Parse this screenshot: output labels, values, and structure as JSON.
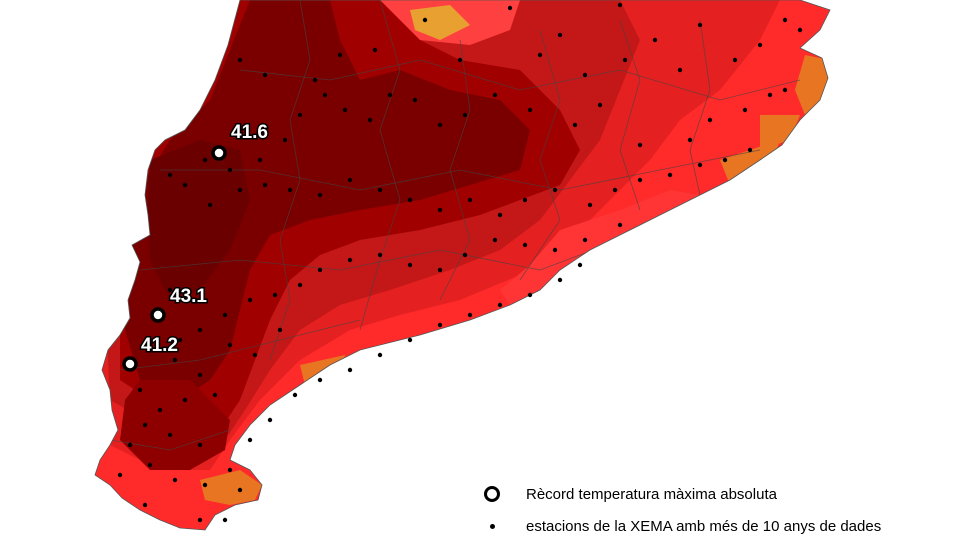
{
  "map": {
    "colors": {
      "very_dark": "#7a0000",
      "dark": "#a00000",
      "mid_dark": "#c41818",
      "red": "#e52020",
      "bright": "#ff2a2a",
      "orange": "#e87522",
      "border": "#444444"
    },
    "records": [
      {
        "label": "41.6"
      },
      {
        "label": "43.1"
      },
      {
        "label": "41.2"
      }
    ]
  },
  "legend": {
    "record_label": "Rècord temperatura màxima absoluta",
    "stations_label": "estacions de la XEMA amb més de 10 anys de dades"
  }
}
